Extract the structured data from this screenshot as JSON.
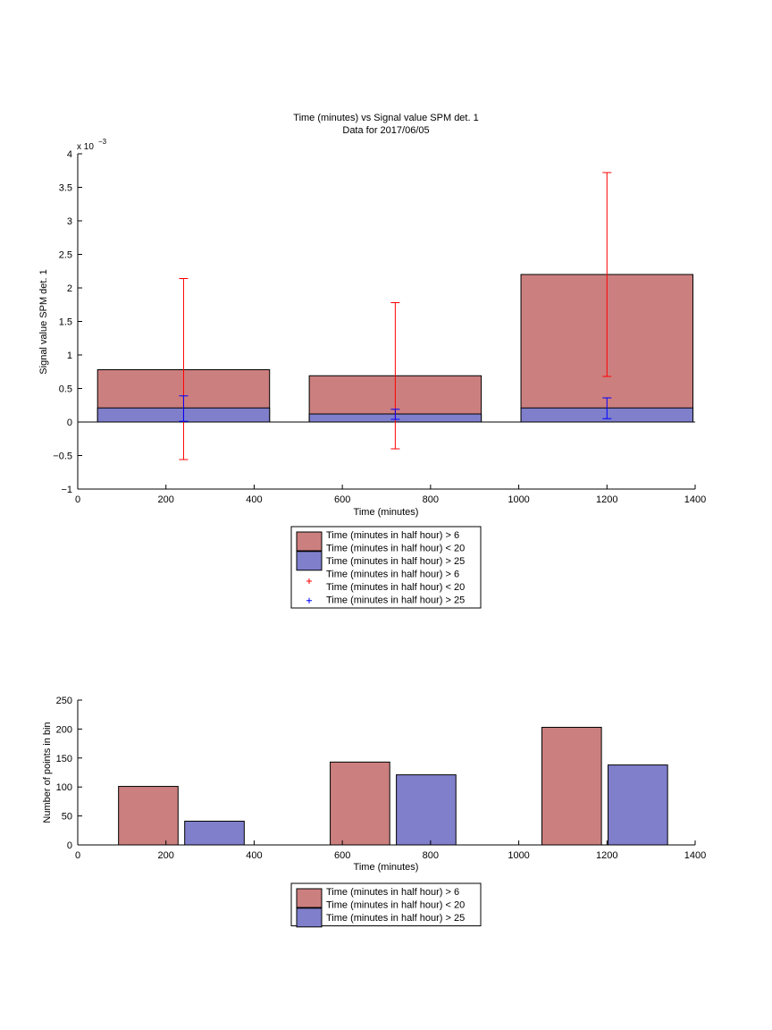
{
  "colors": {
    "series_red": "#cc7f7f",
    "series_blue": "#7f7fcc",
    "errorbar_red": "#ff0000",
    "errorbar_blue": "#0000ff"
  },
  "chart_data": [
    {
      "type": "bar",
      "title": "Time (minutes) vs Signal value SPM det. 1",
      "subtitle": "Data for 2017/06/05",
      "xlabel": "Time (minutes)",
      "ylabel": "Signal value SPM det. 1",
      "y_exponent_label": "x 10",
      "y_exponent": "−3",
      "xlim": [
        0,
        1400
      ],
      "ylim": [
        -1,
        4
      ],
      "y_scale_note": "values shown in units of 10^-3",
      "xticks": [
        "0",
        "200",
        "400",
        "600",
        "800",
        "1000",
        "1200",
        "1400"
      ],
      "yticks": [
        "−1",
        "−0.5",
        "0",
        "0.5",
        "1",
        "1.5",
        "2",
        "2.5",
        "3",
        "3.5",
        "4"
      ],
      "bar_layout": "overlaid",
      "bins": [
        {
          "x_start": 45,
          "x_end": 435,
          "center": 240
        },
        {
          "x_start": 525,
          "x_end": 915,
          "center": 720
        },
        {
          "x_start": 1005,
          "x_end": 1395,
          "center": 1200
        }
      ],
      "series": [
        {
          "name": "Time (minutes in half hour) > 6 Time (minutes in half hour) < 20",
          "values": [
            0.78,
            0.69,
            2.2
          ],
          "errorbars": [
            [
              -0.56,
              2.14
            ],
            [
              -0.4,
              1.78
            ],
            [
              0.68,
              3.72
            ]
          ]
        },
        {
          "name": "Time (minutes in half hour) > 25",
          "values": [
            0.21,
            0.12,
            0.21
          ],
          "errorbars": [
            [
              0.01,
              0.39
            ],
            [
              0.04,
              0.19
            ],
            [
              0.05,
              0.36
            ]
          ]
        }
      ],
      "legend": {
        "placement": "below",
        "entries": [
          {
            "kind": "patch",
            "color": "#cc7f7f",
            "lines": [
              "Time (minutes in half hour) > 6",
              "Time (minutes in half hour) < 20"
            ]
          },
          {
            "kind": "patch",
            "color": "#7f7fcc",
            "lines": [
              "Time (minutes in half hour) > 25"
            ]
          },
          {
            "kind": "marker",
            "color": "#ff0000",
            "lines": [
              "Time (minutes in half hour) > 6",
              "Time (minutes in half hour) < 20"
            ]
          },
          {
            "kind": "marker",
            "color": "#0000ff",
            "lines": [
              "Time (minutes in half hour) > 25"
            ]
          }
        ]
      }
    },
    {
      "type": "bar",
      "title": "",
      "xlabel": "Time (minutes)",
      "ylabel": "Number of points in bin",
      "xlim": [
        0,
        1400
      ],
      "ylim": [
        0,
        250
      ],
      "xticks": [
        "0",
        "200",
        "400",
        "600",
        "800",
        "1000",
        "1200",
        "1400"
      ],
      "yticks": [
        "0",
        "50",
        "100",
        "150",
        "200",
        "250"
      ],
      "bar_layout": "grouped",
      "bins": [
        {
          "x_start": 85,
          "x_end": 385
        },
        {
          "x_start": 565,
          "x_end": 865
        },
        {
          "x_start": 1045,
          "x_end": 1345
        }
      ],
      "series": [
        {
          "name": "Time (minutes in half hour) > 6 Time (minutes in half hour) < 20",
          "values": [
            101,
            143,
            203
          ]
        },
        {
          "name": "Time (minutes in half hour) > 25",
          "values": [
            41,
            121,
            138
          ]
        }
      ],
      "legend": {
        "placement": "below",
        "entries": [
          {
            "kind": "patch",
            "color": "#cc7f7f",
            "lines": [
              "Time (minutes in half hour) > 6",
              "Time (minutes in half hour) < 20"
            ]
          },
          {
            "kind": "patch",
            "color": "#7f7fcc",
            "lines": [
              "Time (minutes in half hour) > 25"
            ]
          }
        ]
      }
    }
  ]
}
